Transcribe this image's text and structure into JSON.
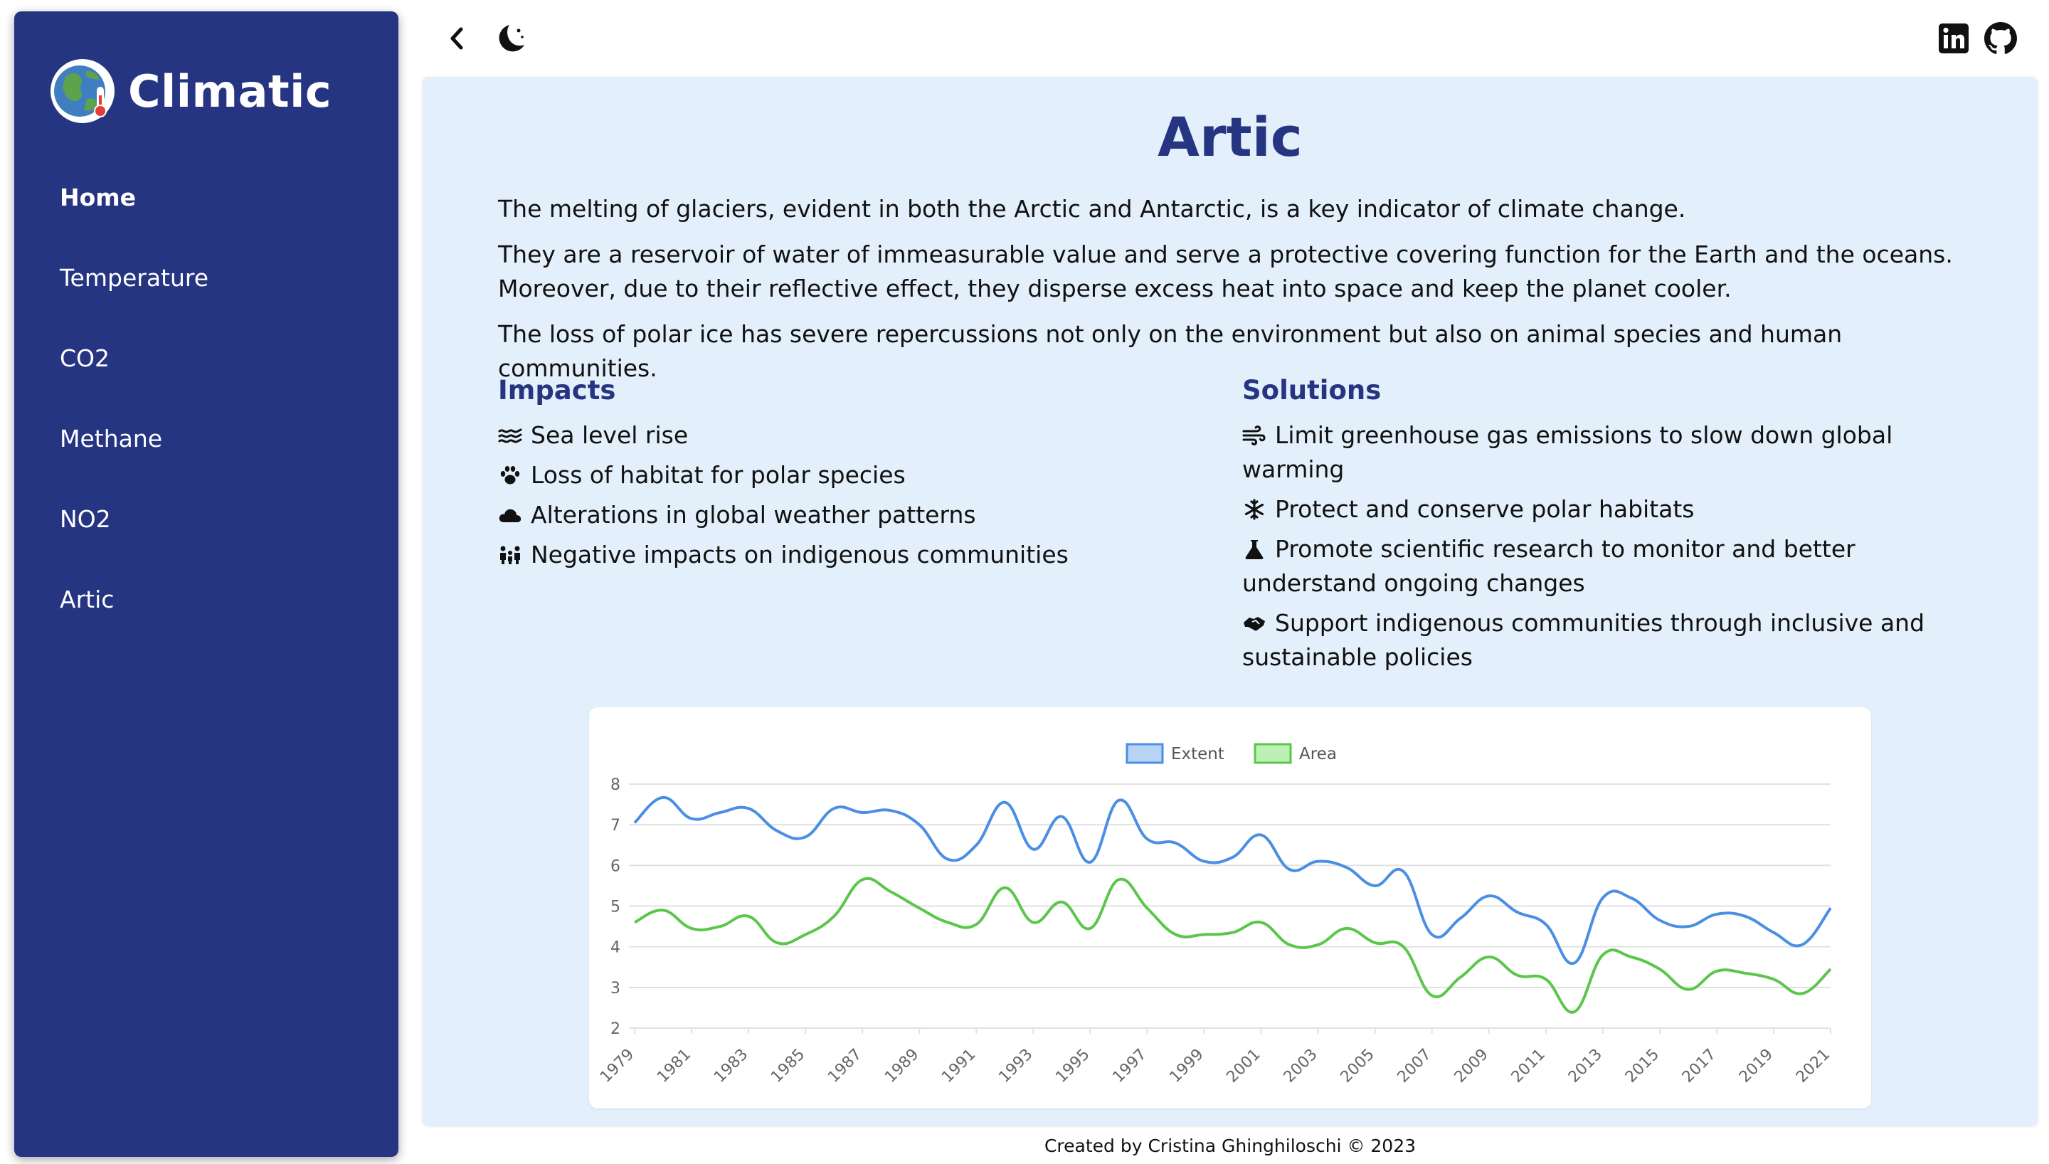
{
  "sidebar": {
    "brand": "Climatic",
    "items": [
      {
        "label": "Home",
        "active": true
      },
      {
        "label": "Temperature",
        "active": false
      },
      {
        "label": "CO2",
        "active": false
      },
      {
        "label": "Methane",
        "active": false
      },
      {
        "label": "NO2",
        "active": false
      },
      {
        "label": "Artic",
        "active": false
      }
    ]
  },
  "topbar": {
    "left_icons": [
      "chevron-left-icon",
      "moon-icon"
    ],
    "right_icons": [
      "linkedin-icon",
      "github-icon"
    ]
  },
  "main": {
    "title": "Artic",
    "paragraphs": [
      "The melting of glaciers, evident in both the Arctic and Antarctic, is a key indicator of climate change.",
      "They are a reservoir of water of immeasurable value and serve a protective covering function for the Earth and the oceans. Moreover, due to their reflective effect, they disperse excess heat into space and keep the planet cooler.",
      "The loss of polar ice has severe repercussions not only on the environment but also on animal species and human communities."
    ],
    "impacts": {
      "heading": "Impacts",
      "items": [
        {
          "icon": "water-waves-icon",
          "text": "Sea level rise"
        },
        {
          "icon": "paw-icon",
          "text": "Loss of habitat for polar species"
        },
        {
          "icon": "cloud-icon",
          "text": "Alterations in global weather patterns"
        },
        {
          "icon": "people-icon",
          "text": "Negative impacts on indigenous communities"
        }
      ]
    },
    "solutions": {
      "heading": "Solutions",
      "items": [
        {
          "icon": "wind-icon",
          "text": "Limit greenhouse gas emissions to slow down global warming"
        },
        {
          "icon": "snowflake-icon",
          "text": "Protect and conserve polar habitats"
        },
        {
          "icon": "flask-icon",
          "text": "Promote scientific research to monitor and better understand ongoing changes"
        },
        {
          "icon": "handshake-icon",
          "text": "Support indigenous communities through inclusive and sustainable policies"
        }
      ]
    }
  },
  "chart_data": {
    "type": "line",
    "x": [
      1979,
      1980,
      1981,
      1982,
      1983,
      1984,
      1985,
      1986,
      1987,
      1988,
      1989,
      1990,
      1991,
      1992,
      1993,
      1994,
      1995,
      1996,
      1997,
      1998,
      1999,
      2000,
      2001,
      2002,
      2003,
      2004,
      2005,
      2006,
      2007,
      2008,
      2009,
      2010,
      2011,
      2012,
      2013,
      2014,
      2015,
      2016,
      2017,
      2018,
      2019,
      2020,
      2021
    ],
    "xticks": [
      1979,
      1981,
      1983,
      1985,
      1987,
      1989,
      1991,
      1993,
      1995,
      1997,
      1999,
      2001,
      2003,
      2005,
      2007,
      2009,
      2011,
      2013,
      2015,
      2017,
      2019,
      2021
    ],
    "ylim": [
      2,
      8
    ],
    "yticks": [
      2,
      3,
      4,
      5,
      6,
      7,
      8
    ],
    "grid": true,
    "legend_position": "top-center",
    "series": [
      {
        "name": "Extent",
        "color": "#4a8fe3",
        "fill": "#b9d3f5",
        "values": [
          7.05,
          7.67,
          7.15,
          7.3,
          7.4,
          6.85,
          6.7,
          7.4,
          7.3,
          7.35,
          7.0,
          6.15,
          6.5,
          7.55,
          6.4,
          7.2,
          6.08,
          7.6,
          6.65,
          6.55,
          6.1,
          6.2,
          6.75,
          5.9,
          6.1,
          5.95,
          5.5,
          5.85,
          4.3,
          4.7,
          5.25,
          4.85,
          4.55,
          3.6,
          5.2,
          5.2,
          4.65,
          4.5,
          4.8,
          4.75,
          4.35,
          4.05,
          4.95
        ]
      },
      {
        "name": "Area",
        "color": "#5cc64c",
        "fill": "#bdf0b4",
        "values": [
          4.6,
          4.9,
          4.45,
          4.5,
          4.75,
          4.1,
          4.3,
          4.75,
          5.65,
          5.35,
          4.95,
          4.6,
          4.55,
          5.45,
          4.6,
          5.1,
          4.45,
          5.65,
          4.95,
          4.3,
          4.3,
          4.35,
          4.6,
          4.05,
          4.05,
          4.45,
          4.1,
          4.0,
          2.8,
          3.25,
          3.75,
          3.3,
          3.2,
          2.4,
          3.8,
          3.75,
          3.45,
          2.95,
          3.4,
          3.35,
          3.2,
          2.85,
          3.45
        ]
      }
    ]
  },
  "footer": {
    "text": "Created by Cristina Ghinghiloschi © 2023"
  }
}
